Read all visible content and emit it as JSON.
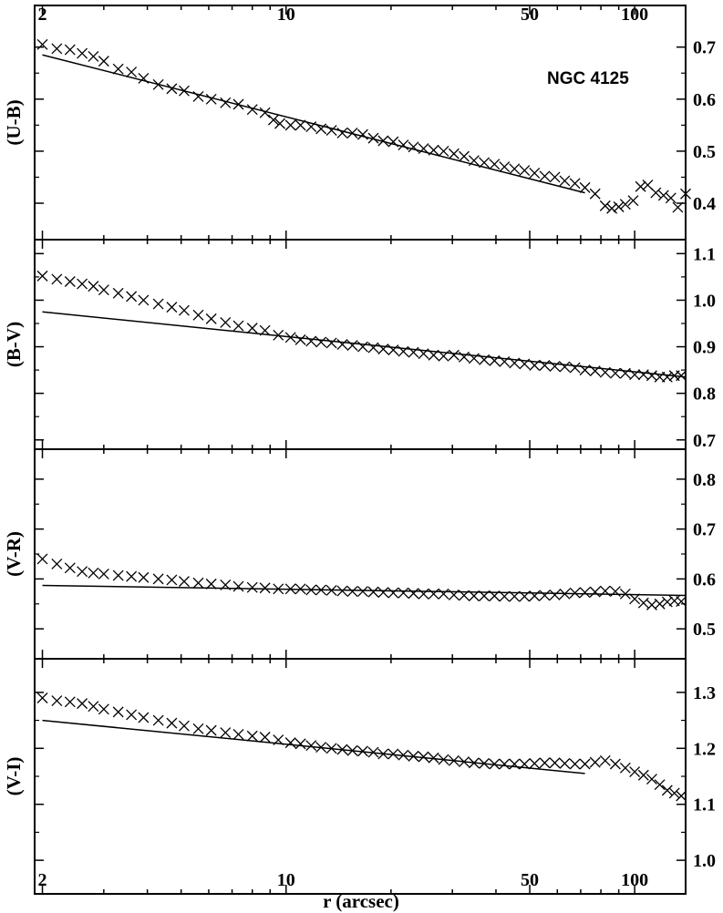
{
  "chart_data": [
    {
      "type": "scatter",
      "ylabel": "(U-B)",
      "annotation": "NGC 4125",
      "x_scale": "log",
      "xlim": [
        1.9,
        140
      ],
      "ylim": [
        0.33,
        0.78
      ],
      "y_ticks": [
        0.4,
        0.5,
        0.6,
        0.7
      ],
      "y_tick_labels": [
        "0.4",
        "0.5",
        "0.6",
        "0.7"
      ],
      "series": [
        {
          "kind": "markers",
          "marker": "x",
          "x": [
            2.0,
            2.2,
            2.4,
            2.6,
            2.8,
            3.0,
            3.3,
            3.6,
            3.9,
            4.3,
            4.7,
            5.1,
            5.6,
            6.1,
            6.7,
            7.3,
            8.0,
            8.7,
            9.2,
            9.6,
            10.3,
            11.0,
            11.8,
            12.6,
            13.5,
            14.5,
            15.5,
            16.6,
            17.8,
            19.0,
            20.3,
            21.7,
            23.2,
            24.8,
            26.5,
            28.3,
            30.3,
            32.4,
            34.6,
            37.0,
            39.6,
            42.3,
            45.2,
            48.3,
            51.6,
            55.2,
            59.0,
            63.0,
            67.4,
            72.0,
            77.0,
            82.3,
            86.0,
            90.0,
            94.0,
            99.0,
            104.0,
            109.0,
            115.0,
            121.0,
            127.0,
            133.0,
            140.0
          ],
          "y": [
            0.705,
            0.697,
            0.695,
            0.688,
            0.682,
            0.673,
            0.658,
            0.652,
            0.64,
            0.628,
            0.62,
            0.616,
            0.605,
            0.6,
            0.593,
            0.59,
            0.58,
            0.574,
            0.56,
            0.553,
            0.55,
            0.55,
            0.547,
            0.543,
            0.54,
            0.535,
            0.535,
            0.532,
            0.525,
            0.52,
            0.518,
            0.512,
            0.508,
            0.505,
            0.502,
            0.5,
            0.495,
            0.49,
            0.482,
            0.478,
            0.475,
            0.47,
            0.466,
            0.463,
            0.458,
            0.452,
            0.45,
            0.443,
            0.438,
            0.43,
            0.418,
            0.395,
            0.39,
            0.393,
            0.398,
            0.405,
            0.432,
            0.435,
            0.42,
            0.415,
            0.41,
            0.392,
            0.418
          ]
        },
        {
          "kind": "line",
          "x": [
            2.0,
            72.0
          ],
          "y": [
            0.685,
            0.42
          ]
        }
      ]
    },
    {
      "type": "scatter",
      "ylabel": "(B-V)",
      "x_scale": "log",
      "xlim": [
        1.9,
        140
      ],
      "ylim": [
        0.68,
        1.13
      ],
      "y_ticks": [
        0.7,
        0.8,
        0.9,
        1.0,
        1.1
      ],
      "y_tick_labels": [
        "0.7",
        "0.8",
        "0.9",
        "1.0",
        "1.1"
      ],
      "series": [
        {
          "kind": "markers",
          "marker": "x",
          "x": [
            2.0,
            2.2,
            2.4,
            2.6,
            2.8,
            3.0,
            3.3,
            3.6,
            3.9,
            4.3,
            4.7,
            5.1,
            5.6,
            6.1,
            6.7,
            7.3,
            8.0,
            8.7,
            9.5,
            10.3,
            11.0,
            11.8,
            12.6,
            13.5,
            14.5,
            15.5,
            16.6,
            17.8,
            19.0,
            20.3,
            21.7,
            23.2,
            24.8,
            26.5,
            28.3,
            30.3,
            32.4,
            34.6,
            37.0,
            39.6,
            42.3,
            45.2,
            48.3,
            51.6,
            55.2,
            59.0,
            63.0,
            67.4,
            72.0,
            77.0,
            82.3,
            88.0,
            94.0,
            100.0,
            106.0,
            112.0,
            118.0,
            124.0,
            130.0,
            136.0
          ],
          "y": [
            1.052,
            1.045,
            1.04,
            1.035,
            1.03,
            1.022,
            1.015,
            1.008,
            1.0,
            0.992,
            0.985,
            0.978,
            0.968,
            0.96,
            0.952,
            0.945,
            0.94,
            0.935,
            0.925,
            0.92,
            0.915,
            0.912,
            0.91,
            0.908,
            0.905,
            0.903,
            0.9,
            0.898,
            0.895,
            0.893,
            0.89,
            0.888,
            0.885,
            0.882,
            0.88,
            0.882,
            0.878,
            0.875,
            0.872,
            0.87,
            0.868,
            0.865,
            0.863,
            0.86,
            0.86,
            0.858,
            0.857,
            0.855,
            0.85,
            0.848,
            0.845,
            0.843,
            0.843,
            0.84,
            0.84,
            0.838,
            0.835,
            0.835,
            0.838,
            0.838
          ]
        },
        {
          "kind": "line",
          "x": [
            2.0,
            140.0
          ],
          "y": [
            0.975,
            0.835
          ]
        }
      ]
    },
    {
      "type": "scatter",
      "ylabel": "(V-R)",
      "x_scale": "log",
      "xlim": [
        1.9,
        140
      ],
      "ylim": [
        0.44,
        0.86
      ],
      "y_ticks": [
        0.5,
        0.6,
        0.7,
        0.8
      ],
      "y_tick_labels": [
        "0.5",
        "0.6",
        "0.7",
        "0.8"
      ],
      "series": [
        {
          "kind": "markers",
          "marker": "x",
          "x": [
            2.0,
            2.2,
            2.4,
            2.6,
            2.8,
            3.0,
            3.3,
            3.6,
            3.9,
            4.3,
            4.7,
            5.1,
            5.6,
            6.1,
            6.7,
            7.3,
            8.0,
            8.7,
            9.5,
            10.3,
            11.0,
            11.8,
            12.6,
            13.5,
            14.5,
            15.5,
            16.6,
            17.8,
            19.0,
            20.3,
            21.7,
            23.2,
            24.8,
            26.5,
            28.3,
            30.3,
            32.4,
            34.6,
            37.0,
            39.6,
            42.3,
            45.2,
            48.3,
            51.6,
            55.2,
            59.0,
            63.0,
            67.4,
            72.0,
            77.0,
            82.3,
            88.0,
            94.0,
            100.0,
            106.0,
            112.0,
            118.0,
            124.0,
            130.0,
            136.0
          ],
          "y": [
            0.64,
            0.63,
            0.622,
            0.615,
            0.612,
            0.61,
            0.607,
            0.605,
            0.603,
            0.6,
            0.598,
            0.595,
            0.592,
            0.59,
            0.588,
            0.585,
            0.583,
            0.582,
            0.58,
            0.58,
            0.58,
            0.578,
            0.578,
            0.577,
            0.576,
            0.575,
            0.575,
            0.574,
            0.573,
            0.572,
            0.572,
            0.571,
            0.57,
            0.57,
            0.57,
            0.568,
            0.567,
            0.566,
            0.566,
            0.566,
            0.565,
            0.565,
            0.565,
            0.566,
            0.567,
            0.568,
            0.57,
            0.572,
            0.573,
            0.574,
            0.576,
            0.575,
            0.57,
            0.56,
            0.552,
            0.548,
            0.55,
            0.554,
            0.556,
            0.555
          ]
        },
        {
          "kind": "line",
          "x": [
            2.0,
            140.0
          ],
          "y": [
            0.587,
            0.567
          ]
        }
      ]
    },
    {
      "type": "scatter",
      "ylabel": "(V-I)",
      "xlabel": "r (arcsec)",
      "x_scale": "log",
      "xlim": [
        1.9,
        140
      ],
      "ylim": [
        0.94,
        1.36
      ],
      "y_ticks": [
        1.0,
        1.1,
        1.2,
        1.3
      ],
      "y_tick_labels": [
        "1.0",
        "1.1",
        "1.2",
        "1.3"
      ],
      "series": [
        {
          "kind": "markers",
          "marker": "x",
          "x": [
            2.0,
            2.2,
            2.4,
            2.6,
            2.8,
            3.0,
            3.3,
            3.6,
            3.9,
            4.3,
            4.7,
            5.1,
            5.6,
            6.1,
            6.7,
            7.3,
            8.0,
            8.7,
            9.5,
            10.3,
            11.0,
            11.8,
            12.6,
            13.5,
            14.5,
            15.5,
            16.6,
            17.8,
            19.0,
            20.3,
            21.7,
            23.2,
            24.8,
            26.5,
            28.3,
            30.3,
            32.4,
            34.6,
            37.0,
            39.6,
            42.3,
            45.2,
            48.3,
            51.6,
            55.2,
            59.0,
            63.0,
            67.4,
            72.0,
            77.0,
            82.3,
            88.0,
            94.0,
            100.0,
            106.0,
            112.0,
            118.0,
            124.0,
            130.0,
            136.0
          ],
          "y": [
            1.29,
            1.285,
            1.283,
            1.28,
            1.275,
            1.27,
            1.265,
            1.26,
            1.255,
            1.25,
            1.245,
            1.24,
            1.235,
            1.232,
            1.228,
            1.225,
            1.222,
            1.22,
            1.215,
            1.21,
            1.208,
            1.205,
            1.202,
            1.2,
            1.198,
            1.196,
            1.195,
            1.193,
            1.19,
            1.19,
            1.188,
            1.186,
            1.185,
            1.183,
            1.18,
            1.178,
            1.176,
            1.174,
            1.173,
            1.172,
            1.172,
            1.172,
            1.172,
            1.173,
            1.174,
            1.174,
            1.173,
            1.172,
            1.172,
            1.175,
            1.178,
            1.172,
            1.165,
            1.158,
            1.152,
            1.145,
            1.135,
            1.125,
            1.12,
            1.115
          ]
        },
        {
          "kind": "line",
          "x": [
            2.0,
            72.0
          ],
          "y": [
            1.25,
            1.155
          ]
        }
      ]
    }
  ],
  "x_axis": {
    "ticks": [
      2,
      10,
      50,
      100
    ],
    "tick_labels": [
      "2",
      "10",
      "50",
      "100"
    ]
  }
}
